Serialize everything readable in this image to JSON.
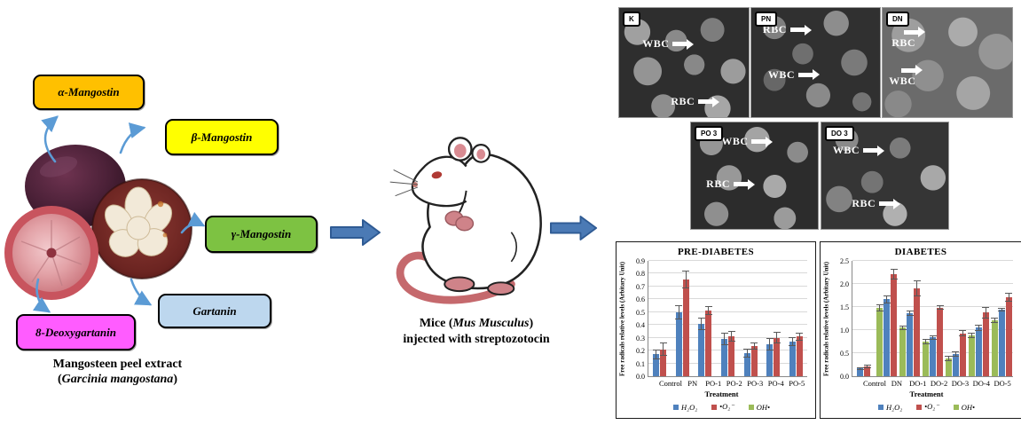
{
  "left_panel": {
    "compounds": [
      {
        "label": "α-Mangostin",
        "color": "#FFC000"
      },
      {
        "label": "β-Mangostin",
        "color": "#FFFF00"
      },
      {
        "label": "γ-Mangostin",
        "color": "#7DC242"
      },
      {
        "label": "Gartanin",
        "color": "#BDD7EE"
      },
      {
        "label": "8-Deoxygartanin",
        "color": "#FF5CFF"
      }
    ],
    "caption_line1": "Mangosteen peel extract",
    "caption_line2_prefix": "(",
    "caption_line2_italic": "Garcinia mangostana",
    "caption_line2_suffix": ")"
  },
  "middle_panel": {
    "caption_prefix": "Mice (",
    "caption_italic": "Mus Musculus",
    "caption_suffix": ")",
    "caption_line2": "injected with streptozotocin"
  },
  "sem_panels": [
    {
      "id": "K",
      "annotations": [
        {
          "text": "WBC"
        },
        {
          "text": "RBC"
        }
      ]
    },
    {
      "id": "PN",
      "annotations": [
        {
          "text": "RBC"
        },
        {
          "text": "WBC"
        }
      ]
    },
    {
      "id": "DN",
      "annotations": [
        {
          "text": "RBC"
        },
        {
          "text": "WBC"
        }
      ]
    },
    {
      "id": "PO 3",
      "annotations": [
        {
          "text": "WBC"
        },
        {
          "text": "RBC"
        }
      ]
    },
    {
      "id": "DO 3",
      "annotations": [
        {
          "text": "WBC"
        },
        {
          "text": "RBC"
        }
      ]
    }
  ],
  "cell_labels": {
    "wbc": "WBC",
    "rbc": "RBC"
  },
  "chart_data": [
    {
      "type": "bar",
      "title": "PRE-DIABETES",
      "xlabel": "Treatment",
      "ylabel": "Free radicals relative levels (Arbitary Unit)",
      "ylim": [
        0,
        0.9
      ],
      "ystep": 0.1,
      "ydecimals": 1,
      "grid": true,
      "legend_position": "bottom",
      "categories": [
        "Control",
        "PN",
        "PO-1",
        "PO-2",
        "PO-3",
        "PO-4",
        "PO-5"
      ],
      "series": [
        {
          "name": "H₂O₂",
          "color": "#4F81BD",
          "values": [
            0.17,
            0.5,
            0.41,
            0.29,
            0.18,
            0.25,
            0.27
          ],
          "errors": [
            0.04,
            0.055,
            0.05,
            0.05,
            0.035,
            0.05,
            0.035
          ]
        },
        {
          "name": "•O₂⁻",
          "color": "#C0504D",
          "values": [
            0.21,
            0.755,
            0.515,
            0.31,
            0.235,
            0.3,
            0.31
          ],
          "errors": [
            0.05,
            0.07,
            0.035,
            0.04,
            0.03,
            0.045,
            0.03
          ]
        },
        {
          "name": "OH•",
          "color": "#9BBB59",
          "values": [
            0,
            0,
            0,
            0,
            0,
            0,
            0
          ],
          "errors": [
            0,
            0,
            0,
            0,
            0,
            0,
            0
          ]
        }
      ],
      "legend_order": [
        0,
        1,
        2
      ]
    },
    {
      "type": "bar",
      "title": "DIABETES",
      "xlabel": "Treatment",
      "ylabel": "Free radicals relative levels (Arbitary Unit)",
      "ylim": [
        0,
        2.5
      ],
      "ystep": 0.5,
      "ydecimals": 1,
      "grid": true,
      "legend_position": "bottom",
      "categories": [
        "Control",
        "DN",
        "DO-1",
        "DO-2",
        "DO-3",
        "DO-4",
        "DO-5"
      ],
      "series": [
        {
          "name": "OH•",
          "color": "#9BBB59",
          "values": [
            0,
            1.48,
            1.05,
            0.75,
            0.38,
            0.89,
            1.21
          ],
          "errors": [
            0,
            0.08,
            0.05,
            0.05,
            0.06,
            0.06,
            0.06
          ]
        },
        {
          "name": "H₂O₂",
          "color": "#4F81BD",
          "values": [
            0.17,
            1.67,
            1.37,
            0.84,
            0.48,
            1.05,
            1.45
          ],
          "errors": [
            0.03,
            0.09,
            0.06,
            0.05,
            0.05,
            0.06,
            0.04
          ]
        },
        {
          "name": "•O₂⁻",
          "color": "#C0504D",
          "values": [
            0.21,
            2.21,
            1.9,
            1.49,
            0.93,
            1.38,
            1.71
          ],
          "errors": [
            0.04,
            0.12,
            0.17,
            0.05,
            0.07,
            0.13,
            0.1
          ]
        }
      ],
      "legend_order": [
        1,
        2,
        0
      ]
    }
  ]
}
